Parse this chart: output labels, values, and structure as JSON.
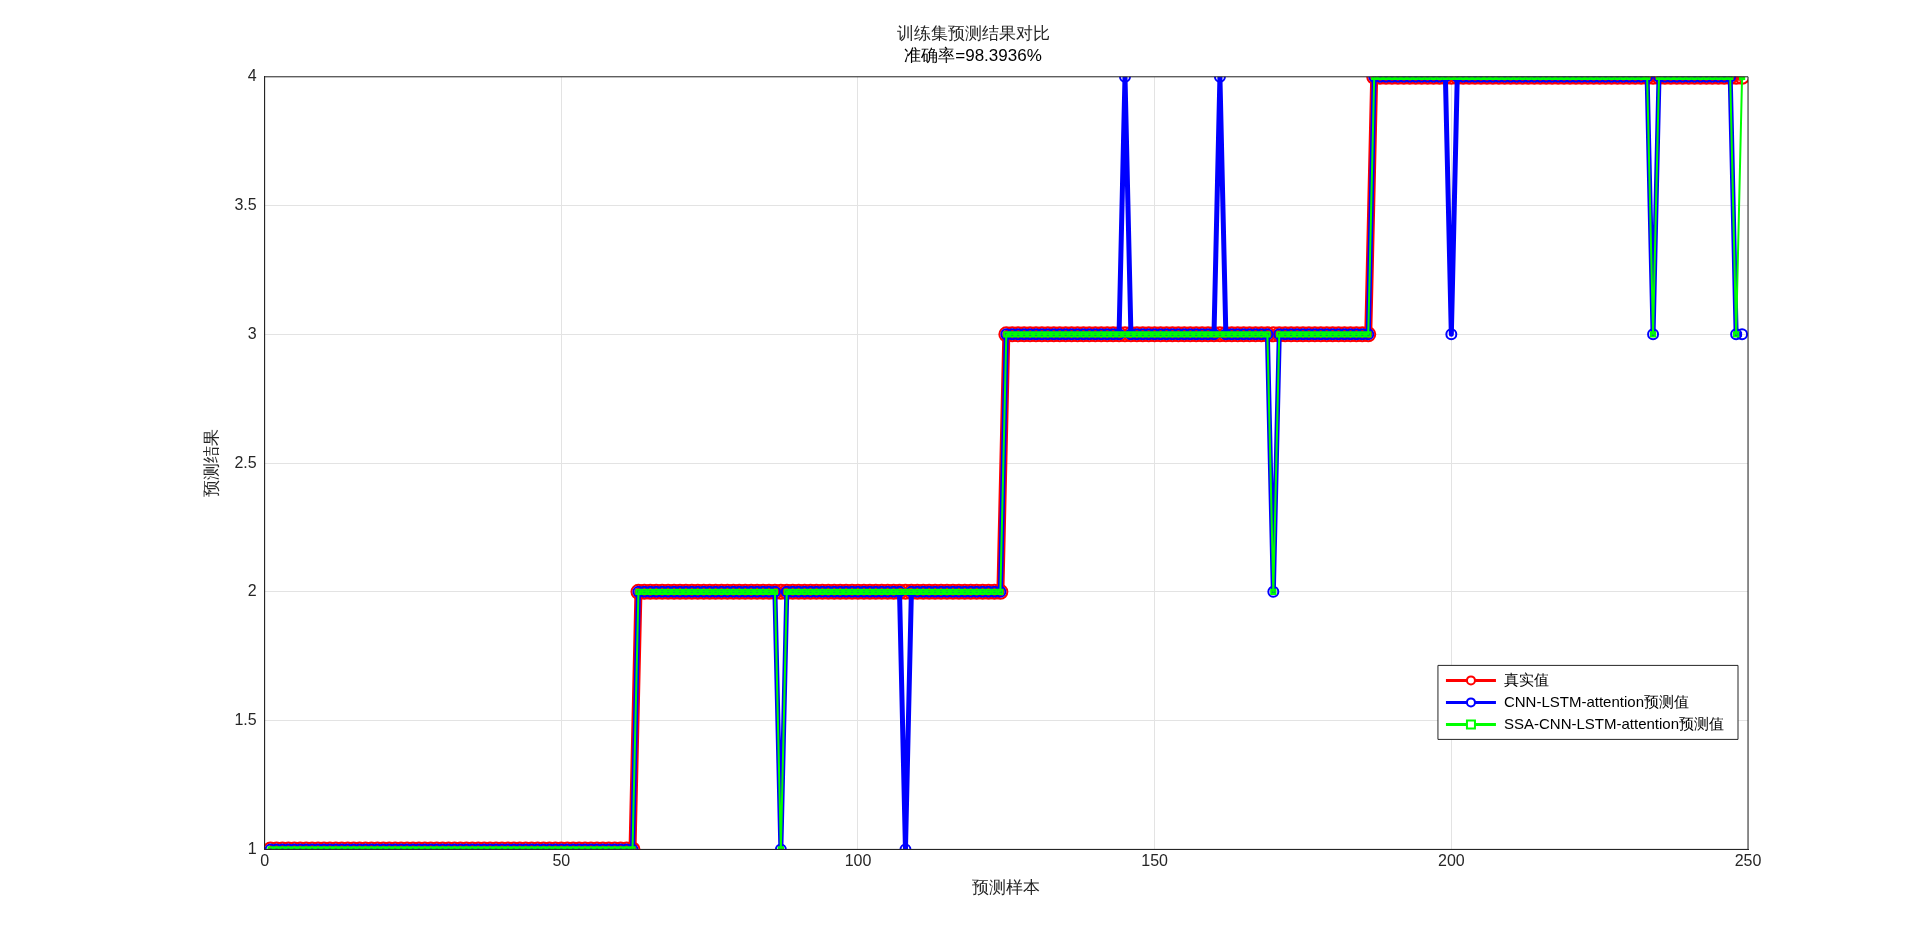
{
  "chart_data": {
    "type": "line",
    "title": "训练集预测结果对比",
    "subtitle": "准确率=98.3936%",
    "xlabel": "预测样本",
    "ylabel": "预测结果",
    "x": [
      1,
      2,
      3,
      4,
      5,
      6,
      7,
      8,
      9,
      10,
      11,
      12,
      13,
      14,
      15,
      16,
      17,
      18,
      19,
      20,
      21,
      22,
      23,
      24,
      25,
      26,
      27,
      28,
      29,
      30,
      31,
      32,
      33,
      34,
      35,
      36,
      37,
      38,
      39,
      40,
      41,
      42,
      43,
      44,
      45,
      46,
      47,
      48,
      49,
      50,
      51,
      52,
      53,
      54,
      55,
      56,
      57,
      58,
      59,
      60,
      61,
      62,
      63,
      64,
      65,
      66,
      67,
      68,
      69,
      70,
      71,
      72,
      73,
      74,
      75,
      76,
      77,
      78,
      79,
      80,
      81,
      82,
      83,
      84,
      85,
      86,
      87,
      88,
      89,
      90,
      91,
      92,
      93,
      94,
      95,
      96,
      97,
      98,
      99,
      100,
      101,
      102,
      103,
      104,
      105,
      106,
      107,
      108,
      109,
      110,
      111,
      112,
      113,
      114,
      115,
      116,
      117,
      118,
      119,
      120,
      121,
      122,
      123,
      124,
      125,
      126,
      127,
      128,
      129,
      130,
      131,
      132,
      133,
      134,
      135,
      136,
      137,
      138,
      139,
      140,
      141,
      142,
      143,
      144,
      145,
      146,
      147,
      148,
      149,
      150,
      151,
      152,
      153,
      154,
      155,
      156,
      157,
      158,
      159,
      160,
      161,
      162,
      163,
      164,
      165,
      166,
      167,
      168,
      169,
      170,
      171,
      172,
      173,
      174,
      175,
      176,
      177,
      178,
      179,
      180,
      181,
      182,
      183,
      184,
      185,
      186,
      187,
      188,
      189,
      190,
      191,
      192,
      193,
      194,
      195,
      196,
      197,
      198,
      199,
      200,
      201,
      202,
      203,
      204,
      205,
      206,
      207,
      208,
      209,
      210,
      211,
      212,
      213,
      214,
      215,
      216,
      217,
      218,
      219,
      220,
      221,
      222,
      223,
      224,
      225,
      226,
      227,
      228,
      229,
      230,
      231,
      232,
      233,
      234,
      235,
      236,
      237,
      238,
      239,
      240,
      241,
      242,
      243,
      244,
      245,
      246,
      247,
      248,
      249
    ],
    "series": [
      {
        "name": "真实值",
        "color": "#ff0000",
        "marker": "circle",
        "values": [
          1,
          1,
          1,
          1,
          1,
          1,
          1,
          1,
          1,
          1,
          1,
          1,
          1,
          1,
          1,
          1,
          1,
          1,
          1,
          1,
          1,
          1,
          1,
          1,
          1,
          1,
          1,
          1,
          1,
          1,
          1,
          1,
          1,
          1,
          1,
          1,
          1,
          1,
          1,
          1,
          1,
          1,
          1,
          1,
          1,
          1,
          1,
          1,
          1,
          1,
          1,
          1,
          1,
          1,
          1,
          1,
          1,
          1,
          1,
          1,
          1,
          1,
          2,
          2,
          2,
          2,
          2,
          2,
          2,
          2,
          2,
          2,
          2,
          2,
          2,
          2,
          2,
          2,
          2,
          2,
          2,
          2,
          2,
          2,
          2,
          2,
          2,
          2,
          2,
          2,
          2,
          2,
          2,
          2,
          2,
          2,
          2,
          2,
          2,
          2,
          2,
          2,
          2,
          2,
          2,
          2,
          2,
          2,
          2,
          2,
          2,
          2,
          2,
          2,
          2,
          2,
          2,
          2,
          2,
          2,
          2,
          2,
          2,
          2,
          3,
          3,
          3,
          3,
          3,
          3,
          3,
          3,
          3,
          3,
          3,
          3,
          3,
          3,
          3,
          3,
          3,
          3,
          3,
          3,
          3,
          3,
          3,
          3,
          3,
          3,
          3,
          3,
          3,
          3,
          3,
          3,
          3,
          3,
          3,
          3,
          3,
          3,
          3,
          3,
          3,
          3,
          3,
          3,
          3,
          3,
          3,
          3,
          3,
          3,
          3,
          3,
          3,
          3,
          3,
          3,
          3,
          3,
          3,
          3,
          3,
          3,
          4,
          4,
          4,
          4,
          4,
          4,
          4,
          4,
          4,
          4,
          4,
          4,
          4,
          4,
          4,
          4,
          4,
          4,
          4,
          4,
          4,
          4,
          4,
          4,
          4,
          4,
          4,
          4,
          4,
          4,
          4,
          4,
          4,
          4,
          4,
          4,
          4,
          4,
          4,
          4,
          4,
          4,
          4,
          4,
          4,
          4,
          4,
          4,
          4,
          4,
          4,
          4,
          4,
          4,
          4,
          4,
          4,
          4,
          4,
          4,
          4,
          4,
          4
        ]
      },
      {
        "name": "CNN-LSTM-attention预测值",
        "color": "#0000ff",
        "marker": "circle",
        "values": [
          1,
          1,
          1,
          1,
          1,
          1,
          1,
          1,
          1,
          1,
          1,
          1,
          1,
          1,
          1,
          1,
          1,
          1,
          1,
          1,
          1,
          1,
          1,
          1,
          1,
          1,
          1,
          1,
          1,
          1,
          1,
          1,
          1,
          1,
          1,
          1,
          1,
          1,
          1,
          1,
          1,
          1,
          1,
          1,
          1,
          1,
          1,
          1,
          1,
          1,
          1,
          1,
          1,
          1,
          1,
          1,
          1,
          1,
          1,
          1,
          1,
          1,
          2,
          2,
          2,
          2,
          2,
          2,
          2,
          2,
          2,
          2,
          2,
          2,
          2,
          2,
          2,
          2,
          2,
          2,
          2,
          2,
          2,
          2,
          2,
          2,
          1,
          2,
          2,
          2,
          2,
          2,
          2,
          2,
          2,
          2,
          2,
          2,
          2,
          2,
          2,
          2,
          2,
          2,
          2,
          2,
          2,
          1,
          2,
          2,
          2,
          2,
          2,
          2,
          2,
          2,
          2,
          2,
          2,
          2,
          2,
          2,
          2,
          2,
          3,
          3,
          3,
          3,
          3,
          3,
          3,
          3,
          3,
          3,
          3,
          3,
          3,
          3,
          3,
          3,
          3,
          3,
          3,
          3,
          4,
          3,
          3,
          3,
          3,
          3,
          3,
          3,
          3,
          3,
          3,
          3,
          3,
          3,
          3,
          3,
          4,
          3,
          3,
          3,
          3,
          3,
          3,
          3,
          3,
          2,
          3,
          3,
          3,
          3,
          3,
          3,
          3,
          3,
          3,
          3,
          3,
          3,
          3,
          3,
          3,
          3,
          4,
          4,
          4,
          4,
          4,
          4,
          4,
          4,
          4,
          4,
          4,
          4,
          4,
          3,
          4,
          4,
          4,
          4,
          4,
          4,
          4,
          4,
          4,
          4,
          4,
          4,
          4,
          4,
          4,
          4,
          4,
          4,
          4,
          4,
          4,
          4,
          4,
          4,
          4,
          4,
          4,
          4,
          4,
          4,
          4,
          4,
          4,
          3,
          4,
          4,
          4,
          4,
          4,
          4,
          4,
          4,
          4,
          4,
          4,
          4,
          4,
          3,
          3
        ]
      },
      {
        "name": "SSA-CNN-LSTM-attention预测值",
        "color": "#00ff00",
        "marker": "square",
        "values": [
          1,
          1,
          1,
          1,
          1,
          1,
          1,
          1,
          1,
          1,
          1,
          1,
          1,
          1,
          1,
          1,
          1,
          1,
          1,
          1,
          1,
          1,
          1,
          1,
          1,
          1,
          1,
          1,
          1,
          1,
          1,
          1,
          1,
          1,
          1,
          1,
          1,
          1,
          1,
          1,
          1,
          1,
          1,
          1,
          1,
          1,
          1,
          1,
          1,
          1,
          1,
          1,
          1,
          1,
          1,
          1,
          1,
          1,
          1,
          1,
          1,
          1,
          2,
          2,
          2,
          2,
          2,
          2,
          2,
          2,
          2,
          2,
          2,
          2,
          2,
          2,
          2,
          2,
          2,
          2,
          2,
          2,
          2,
          2,
          2,
          2,
          1,
          2,
          2,
          2,
          2,
          2,
          2,
          2,
          2,
          2,
          2,
          2,
          2,
          2,
          2,
          2,
          2,
          2,
          2,
          2,
          2,
          2,
          2,
          2,
          2,
          2,
          2,
          2,
          2,
          2,
          2,
          2,
          2,
          2,
          2,
          2,
          2,
          2,
          3,
          3,
          3,
          3,
          3,
          3,
          3,
          3,
          3,
          3,
          3,
          3,
          3,
          3,
          3,
          3,
          3,
          3,
          3,
          3,
          3,
          3,
          3,
          3,
          3,
          3,
          3,
          3,
          3,
          3,
          3,
          3,
          3,
          3,
          3,
          3,
          3,
          3,
          3,
          3,
          3,
          3,
          3,
          3,
          3,
          2,
          3,
          3,
          3,
          3,
          3,
          3,
          3,
          3,
          3,
          3,
          3,
          3,
          3,
          3,
          3,
          3,
          4,
          4,
          4,
          4,
          4,
          4,
          4,
          4,
          4,
          4,
          4,
          4,
          4,
          4,
          4,
          4,
          4,
          4,
          4,
          4,
          4,
          4,
          4,
          4,
          4,
          4,
          4,
          4,
          4,
          4,
          4,
          4,
          4,
          4,
          4,
          4,
          4,
          4,
          4,
          4,
          4,
          4,
          4,
          4,
          4,
          4,
          4,
          3,
          4,
          4,
          4,
          4,
          4,
          4,
          4,
          4,
          4,
          4,
          4,
          4,
          4,
          3,
          4
        ]
      }
    ],
    "xlim": [
      0,
      250
    ],
    "xticks": [
      0,
      50,
      100,
      150,
      200,
      250
    ],
    "ylim": [
      1,
      4
    ],
    "yticks": [
      1,
      1.5,
      2,
      2.5,
      3,
      3.5,
      4
    ],
    "grid": true,
    "legend": "bottom right"
  }
}
